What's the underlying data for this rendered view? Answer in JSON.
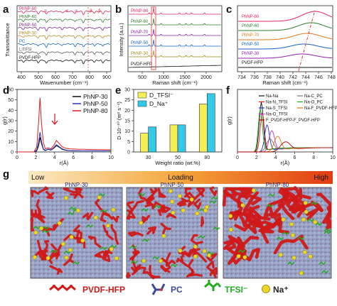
{
  "panel_labels": [
    "a",
    "b",
    "c",
    "d",
    "e",
    "f",
    "g"
  ],
  "panel_a": {
    "ylabel": "Transmittance",
    "xlabel": "Wavenumber (cm⁻¹)",
    "xticks": [
      "400",
      "500",
      "600",
      "700",
      "800",
      "900"
    ],
    "traces": [
      {
        "name": "PhNP-80",
        "color": "#e0245c"
      },
      {
        "name": "PhNP-60",
        "color": "#2e7d32"
      },
      {
        "name": "PhNP-50",
        "color": "#7b2a8c"
      },
      {
        "name": "PhNP-30",
        "color": "#b2891a"
      },
      {
        "name": "PC",
        "color": "#1565c0"
      },
      {
        "name": "LiTFSI",
        "color": "#555555"
      },
      {
        "name": "PVDF-HFP",
        "color": "#111111"
      }
    ],
    "markers": [
      "α",
      "α",
      "β",
      "β",
      "α"
    ]
  },
  "panel_b": {
    "ylabel": "Intensity (a.u.)",
    "xlabel": "Raman shift (cm⁻¹)",
    "xticks": [
      "500",
      "1000",
      "1500",
      "2000"
    ],
    "traces": [
      {
        "name": "PhNP-80",
        "color": "#e0245c"
      },
      {
        "name": "PhNP-60",
        "color": "#2e7d32"
      },
      {
        "name": "PhNP-70",
        "color": "#8e24aa"
      },
      {
        "name": "PhNP-50",
        "color": "#1565c0"
      },
      {
        "name": "PhNP-30",
        "color": "#9e8a12"
      },
      {
        "name": "PVDF-HFP",
        "color": "#111111"
      }
    ]
  },
  "panel_c": {
    "xlabel": "Raman shift (cm⁻¹)",
    "xticks": [
      "734",
      "736",
      "738",
      "740",
      "742",
      "744",
      "746",
      "748"
    ],
    "traces": [
      {
        "name": "PhNP-80",
        "color": "#e0245c"
      },
      {
        "name": "PhNP-60",
        "color": "#2e7d32"
      },
      {
        "name": "PhNP-70",
        "color": "#e07a1a"
      },
      {
        "name": "PhNP-50",
        "color": "#1565c0"
      },
      {
        "name": "PhNP-30",
        "color": "#8e24aa"
      },
      {
        "name": "PVDF-HFP",
        "color": "#111111"
      }
    ]
  },
  "chart_data": [
    {
      "panel": "d",
      "type": "line",
      "xlabel": "r(Å)",
      "ylabel": "g(r)",
      "xlim": [
        0,
        10
      ],
      "ylim": [
        0,
        60
      ],
      "xticks": [
        0,
        2,
        4,
        6,
        8,
        10
      ],
      "yticks": [
        0,
        10,
        20,
        30,
        40,
        50,
        60
      ],
      "legend": "top-right",
      "series": [
        {
          "name": "PhNP-30",
          "color": "#111111",
          "x": [
            0,
            1.8,
            2.1,
            2.3,
            2.45,
            2.6,
            2.8,
            3.0,
            3.3,
            3.6,
            3.9,
            4.2,
            4.5,
            4.8,
            5.2,
            5.6,
            6.0,
            6.5,
            7.0,
            7.5,
            8.0,
            8.5,
            9.0,
            9.5,
            10
          ],
          "y": [
            0,
            0,
            1,
            6,
            14,
            8,
            2.5,
            1.2,
            2.5,
            1.8,
            3.5,
            6,
            4.5,
            2.5,
            1.5,
            1.2,
            1.1,
            1.0,
            1.0,
            1.0,
            1.0,
            1.0,
            1.0,
            1.0,
            1.0
          ]
        },
        {
          "name": "PhNP-50",
          "color": "#2233bb",
          "x": [
            0,
            1.8,
            2.1,
            2.3,
            2.45,
            2.6,
            2.8,
            3.0,
            3.3,
            3.6,
            3.9,
            4.2,
            4.5,
            4.8,
            5.2,
            5.6,
            6.0,
            6.5,
            7.0,
            7.5,
            8.0,
            8.5,
            9.0,
            9.5,
            10
          ],
          "y": [
            0,
            0,
            2,
            10,
            19,
            10,
            3,
            1.5,
            2.8,
            2,
            4,
            7,
            5,
            3,
            1.8,
            1.3,
            1.2,
            1.1,
            1.0,
            1.0,
            1.0,
            1.0,
            1.0,
            1.0,
            1.0
          ]
        },
        {
          "name": "PhNP-80",
          "color": "#dd1a1a",
          "x": [
            0,
            1.8,
            2.1,
            2.3,
            2.45,
            2.6,
            2.8,
            3.0,
            3.3,
            3.6,
            3.9,
            4.2,
            4.5,
            4.8,
            5.2,
            5.6,
            6.0,
            6.5,
            7.0,
            7.5,
            8.0,
            8.5,
            9.0,
            9.5,
            10
          ],
          "y": [
            0,
            0,
            5,
            30,
            52,
            28,
            9,
            3,
            4,
            3,
            6,
            11,
            8,
            5,
            3.5,
            3,
            2.8,
            2.6,
            2.5,
            2.4,
            2.3,
            2.2,
            2.2,
            2.1,
            2.1
          ]
        }
      ]
    },
    {
      "panel": "e",
      "type": "bar",
      "xlabel": "Weight ratio (wt.%)",
      "ylabel": "D·10⁻¹⁰ (m² s⁻¹)",
      "categories": [
        "30",
        "50",
        "80"
      ],
      "ylim": [
        0,
        30
      ],
      "yticks": [
        0,
        5,
        10,
        15,
        20,
        25,
        30
      ],
      "legend": "top-left",
      "series": [
        {
          "name": "D_TFSI⁻",
          "color": "#f5ee55",
          "values": [
            9,
            13,
            23
          ]
        },
        {
          "name": "D_Na⁺",
          "color": "#33c9e8",
          "values": [
            12,
            13,
            28
          ]
        }
      ]
    },
    {
      "panel": "f",
      "type": "line",
      "xlabel": "r(Å)",
      "ylabel": "g(r)",
      "xlim": [
        0,
        10
      ],
      "xticks": [
        0,
        2,
        4,
        6,
        8,
        10
      ],
      "legend": "top-right",
      "series": [
        {
          "name": "Na-Na",
          "color": "#111111"
        },
        {
          "name": "Na-N_TFSI",
          "color": "#dd2222"
        },
        {
          "name": "Na-S_TFSI",
          "color": "#2233cc"
        },
        {
          "name": "Na-O_TFSI",
          "color": "#cc33cc"
        },
        {
          "name": "Na-C_PC",
          "color": "#777777"
        },
        {
          "name": "Na-O_PC",
          "color": "#22aa22"
        },
        {
          "name": "Na-F_PVDF-HFP",
          "color": "#dd7711"
        },
        {
          "name": "F_PVDF-HFP-F_PVDF-HFP",
          "color": "#aa0000"
        }
      ]
    }
  ],
  "panel_f_legend": [
    {
      "left": "Na-Na",
      "right": "Na-C_PC"
    },
    {
      "left": "Na-N_TFSI",
      "right": "Na-O_PC"
    },
    {
      "left": "Na-S_TFSI",
      "right": "Na-F_PVDF-HFP"
    },
    {
      "left": "Na-O_TFSI",
      "right": ""
    },
    {
      "left": "F_PVDF-HFP-F_PVDF-HFP",
      "right": ""
    }
  ],
  "panel_g": {
    "loading_label": "Loading",
    "low_label": "Low",
    "high_label": "High",
    "sim_titles": [
      "PhNP-30",
      "PhNP-50",
      "PhNP-80"
    ]
  },
  "bottom_legend": [
    {
      "label": "PVDF-HFP",
      "color": "#d01818"
    },
    {
      "label": "PC",
      "color": "#3a4a9a"
    },
    {
      "label": "TFSI⁻",
      "color": "#22aa22"
    },
    {
      "label": "Na⁺",
      "color": "#222222"
    }
  ]
}
